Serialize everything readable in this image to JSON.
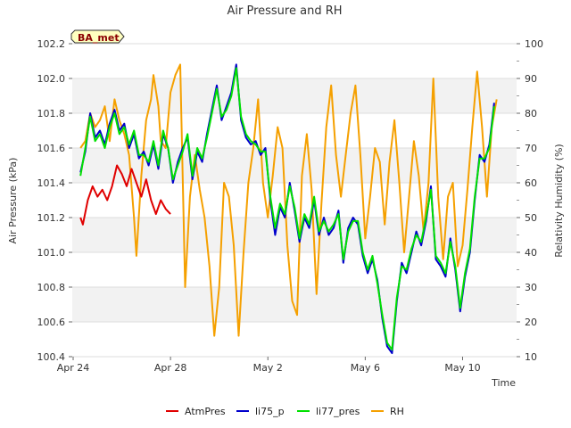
{
  "chart_data": {
    "type": "line",
    "title": "Air Pressure and RH",
    "station_label": "BA_met",
    "xlabel": "Time",
    "ylabel_left": "Air Pressure (kPa)",
    "ylabel_right": "Relativity Humidity (%)",
    "x_axis": {
      "start": "2024-04-24",
      "end": "2024-05-12",
      "ticks": [
        {
          "label": "Apr 24",
          "day": 0
        },
        {
          "label": "Apr 28",
          "day": 4
        },
        {
          "label": "May 2",
          "day": 8
        },
        {
          "label": "May 6",
          "day": 12
        },
        {
          "label": "May 10",
          "day": 16
        }
      ]
    },
    "y_left": {
      "min": 100.4,
      "max": 102.2,
      "ticks": [
        "100.4",
        "100.6",
        "100.8",
        "101.0",
        "101.2",
        "101.4",
        "101.6",
        "101.8",
        "102.0",
        "102.2"
      ]
    },
    "y_right": {
      "min": 10,
      "max": 100,
      "ticks": [
        "10",
        "20",
        "30",
        "40",
        "50",
        "60",
        "70",
        "80",
        "90",
        "100"
      ]
    },
    "legend_position": "bottom",
    "series": [
      {
        "name": "AtmPres",
        "axis": "left",
        "color": "#e00000",
        "points": [
          [
            0.3,
            101.2
          ],
          [
            0.4,
            101.16
          ],
          [
            0.6,
            101.3
          ],
          [
            0.8,
            101.38
          ],
          [
            1.0,
            101.32
          ],
          [
            1.2,
            101.36
          ],
          [
            1.4,
            101.3
          ],
          [
            1.6,
            101.38
          ],
          [
            1.8,
            101.5
          ],
          [
            2.0,
            101.45
          ],
          [
            2.2,
            101.38
          ],
          [
            2.4,
            101.48
          ],
          [
            2.6,
            101.4
          ],
          [
            2.8,
            101.32
          ],
          [
            3.0,
            101.42
          ],
          [
            3.2,
            101.3
          ],
          [
            3.4,
            101.22
          ],
          [
            3.6,
            101.3
          ],
          [
            3.8,
            101.25
          ],
          [
            4.0,
            101.22
          ]
        ]
      },
      {
        "name": "li75_p",
        "axis": "left",
        "color": "#0000cc",
        "points": [
          [
            0.3,
            101.46
          ],
          [
            0.5,
            101.58
          ],
          [
            0.7,
            101.8
          ],
          [
            0.9,
            101.66
          ],
          [
            1.1,
            101.7
          ],
          [
            1.3,
            101.62
          ],
          [
            1.5,
            101.74
          ],
          [
            1.7,
            101.82
          ],
          [
            1.9,
            101.7
          ],
          [
            2.1,
            101.74
          ],
          [
            2.3,
            101.6
          ],
          [
            2.5,
            101.68
          ],
          [
            2.7,
            101.54
          ],
          [
            2.9,
            101.58
          ],
          [
            3.1,
            101.5
          ],
          [
            3.3,
            101.62
          ],
          [
            3.5,
            101.48
          ],
          [
            3.7,
            101.68
          ],
          [
            3.9,
            101.6
          ],
          [
            4.1,
            101.4
          ],
          [
            4.3,
            101.52
          ],
          [
            4.5,
            101.6
          ],
          [
            4.7,
            101.66
          ],
          [
            4.9,
            101.42
          ],
          [
            5.1,
            101.58
          ],
          [
            5.3,
            101.52
          ],
          [
            5.5,
            101.68
          ],
          [
            5.7,
            101.82
          ],
          [
            5.9,
            101.96
          ],
          [
            6.1,
            101.76
          ],
          [
            6.3,
            101.84
          ],
          [
            6.5,
            101.92
          ],
          [
            6.7,
            102.08
          ],
          [
            6.9,
            101.76
          ],
          [
            7.1,
            101.66
          ],
          [
            7.3,
            101.62
          ],
          [
            7.5,
            101.64
          ],
          [
            7.7,
            101.56
          ],
          [
            7.9,
            101.6
          ],
          [
            8.1,
            101.3
          ],
          [
            8.3,
            101.1
          ],
          [
            8.5,
            101.26
          ],
          [
            8.7,
            101.2
          ],
          [
            8.9,
            101.4
          ],
          [
            9.1,
            101.24
          ],
          [
            9.3,
            101.06
          ],
          [
            9.5,
            101.2
          ],
          [
            9.7,
            101.14
          ],
          [
            9.9,
            101.3
          ],
          [
            10.1,
            101.1
          ],
          [
            10.3,
            101.2
          ],
          [
            10.5,
            101.1
          ],
          [
            10.7,
            101.14
          ],
          [
            10.9,
            101.24
          ],
          [
            11.1,
            100.94
          ],
          [
            11.3,
            101.14
          ],
          [
            11.5,
            101.2
          ],
          [
            11.7,
            101.16
          ],
          [
            11.9,
            100.98
          ],
          [
            12.1,
            100.88
          ],
          [
            12.3,
            100.96
          ],
          [
            12.5,
            100.84
          ],
          [
            12.7,
            100.62
          ],
          [
            12.9,
            100.46
          ],
          [
            13.1,
            100.42
          ],
          [
            13.3,
            100.72
          ],
          [
            13.5,
            100.94
          ],
          [
            13.7,
            100.88
          ],
          [
            13.9,
            101.0
          ],
          [
            14.1,
            101.12
          ],
          [
            14.3,
            101.04
          ],
          [
            14.5,
            101.18
          ],
          [
            14.7,
            101.38
          ],
          [
            14.9,
            100.96
          ],
          [
            15.1,
            100.92
          ],
          [
            15.3,
            100.86
          ],
          [
            15.5,
            101.08
          ],
          [
            15.7,
            100.9
          ],
          [
            15.9,
            100.66
          ],
          [
            16.1,
            100.86
          ],
          [
            16.3,
            101.0
          ],
          [
            16.5,
            101.3
          ],
          [
            16.7,
            101.56
          ],
          [
            16.9,
            101.52
          ],
          [
            17.1,
            101.62
          ],
          [
            17.3,
            101.86
          ]
        ]
      },
      {
        "name": "li77_pres",
        "axis": "left",
        "color": "#00e000",
        "points": [
          [
            0.3,
            101.44
          ],
          [
            0.5,
            101.6
          ],
          [
            0.7,
            101.78
          ],
          [
            0.9,
            101.64
          ],
          [
            1.1,
            101.68
          ],
          [
            1.3,
            101.6
          ],
          [
            1.5,
            101.72
          ],
          [
            1.7,
            101.8
          ],
          [
            1.9,
            101.68
          ],
          [
            2.1,
            101.72
          ],
          [
            2.3,
            101.62
          ],
          [
            2.5,
            101.7
          ],
          [
            2.7,
            101.56
          ],
          [
            2.9,
            101.56
          ],
          [
            3.1,
            101.52
          ],
          [
            3.3,
            101.64
          ],
          [
            3.5,
            101.5
          ],
          [
            3.7,
            101.7
          ],
          [
            3.9,
            101.6
          ],
          [
            4.1,
            101.42
          ],
          [
            4.3,
            101.5
          ],
          [
            4.5,
            101.58
          ],
          [
            4.7,
            101.68
          ],
          [
            4.9,
            101.44
          ],
          [
            5.1,
            101.6
          ],
          [
            5.3,
            101.54
          ],
          [
            5.5,
            101.66
          ],
          [
            5.7,
            101.8
          ],
          [
            5.9,
            101.94
          ],
          [
            6.1,
            101.78
          ],
          [
            6.3,
            101.82
          ],
          [
            6.5,
            101.9
          ],
          [
            6.7,
            102.06
          ],
          [
            6.9,
            101.78
          ],
          [
            7.1,
            101.68
          ],
          [
            7.3,
            101.64
          ],
          [
            7.5,
            101.62
          ],
          [
            7.7,
            101.58
          ],
          [
            7.9,
            101.58
          ],
          [
            8.1,
            101.32
          ],
          [
            8.3,
            101.14
          ],
          [
            8.5,
            101.28
          ],
          [
            8.7,
            101.22
          ],
          [
            8.9,
            101.38
          ],
          [
            9.1,
            101.26
          ],
          [
            9.3,
            101.08
          ],
          [
            9.5,
            101.22
          ],
          [
            9.7,
            101.16
          ],
          [
            9.9,
            101.32
          ],
          [
            10.1,
            101.12
          ],
          [
            10.3,
            101.18
          ],
          [
            10.5,
            101.12
          ],
          [
            10.7,
            101.16
          ],
          [
            10.9,
            101.22
          ],
          [
            11.1,
            100.96
          ],
          [
            11.3,
            101.12
          ],
          [
            11.5,
            101.18
          ],
          [
            11.7,
            101.18
          ],
          [
            11.9,
            101.0
          ],
          [
            12.1,
            100.9
          ],
          [
            12.3,
            100.98
          ],
          [
            12.5,
            100.82
          ],
          [
            12.7,
            100.64
          ],
          [
            12.9,
            100.48
          ],
          [
            13.1,
            100.44
          ],
          [
            13.3,
            100.74
          ],
          [
            13.5,
            100.92
          ],
          [
            13.7,
            100.9
          ],
          [
            13.9,
            101.02
          ],
          [
            14.1,
            101.1
          ],
          [
            14.3,
            101.06
          ],
          [
            14.5,
            101.2
          ],
          [
            14.7,
            101.36
          ],
          [
            14.9,
            100.98
          ],
          [
            15.1,
            100.94
          ],
          [
            15.3,
            100.88
          ],
          [
            15.5,
            101.06
          ],
          [
            15.7,
            100.92
          ],
          [
            15.9,
            100.68
          ],
          [
            16.1,
            100.88
          ],
          [
            16.3,
            101.02
          ],
          [
            16.5,
            101.32
          ],
          [
            16.7,
            101.54
          ],
          [
            16.9,
            101.54
          ],
          [
            17.1,
            101.6
          ],
          [
            17.3,
            101.84
          ]
        ]
      },
      {
        "name": "RH",
        "axis": "right",
        "color": "#f5a000",
        "points": [
          [
            0.3,
            70
          ],
          [
            0.5,
            72
          ],
          [
            0.7,
            80
          ],
          [
            0.9,
            76
          ],
          [
            1.1,
            78
          ],
          [
            1.3,
            82
          ],
          [
            1.5,
            72
          ],
          [
            1.7,
            84
          ],
          [
            1.9,
            78
          ],
          [
            2.1,
            74
          ],
          [
            2.3,
            68
          ],
          [
            2.5,
            50
          ],
          [
            2.6,
            39
          ],
          [
            2.8,
            62
          ],
          [
            3.0,
            78
          ],
          [
            3.2,
            84
          ],
          [
            3.3,
            91
          ],
          [
            3.5,
            82
          ],
          [
            3.6,
            72
          ],
          [
            3.8,
            70
          ],
          [
            4.0,
            86
          ],
          [
            4.2,
            91
          ],
          [
            4.4,
            94
          ],
          [
            4.6,
            30
          ],
          [
            4.8,
            56
          ],
          [
            5.0,
            68
          ],
          [
            5.2,
            58
          ],
          [
            5.4,
            50
          ],
          [
            5.6,
            36
          ],
          [
            5.8,
            16
          ],
          [
            6.0,
            30
          ],
          [
            6.2,
            60
          ],
          [
            6.4,
            56
          ],
          [
            6.6,
            42
          ],
          [
            6.8,
            16
          ],
          [
            7.0,
            40
          ],
          [
            7.2,
            60
          ],
          [
            7.4,
            70
          ],
          [
            7.6,
            84
          ],
          [
            7.8,
            60
          ],
          [
            8.0,
            50
          ],
          [
            8.2,
            62
          ],
          [
            8.4,
            76
          ],
          [
            8.6,
            70
          ],
          [
            8.8,
            42
          ],
          [
            9.0,
            26
          ],
          [
            9.2,
            22
          ],
          [
            9.4,
            62
          ],
          [
            9.6,
            74
          ],
          [
            9.8,
            58
          ],
          [
            10.0,
            28
          ],
          [
            10.2,
            54
          ],
          [
            10.4,
            76
          ],
          [
            10.6,
            88
          ],
          [
            10.8,
            68
          ],
          [
            11.0,
            56
          ],
          [
            11.2,
            68
          ],
          [
            11.4,
            80
          ],
          [
            11.6,
            88
          ],
          [
            11.8,
            68
          ],
          [
            12.0,
            44
          ],
          [
            12.2,
            56
          ],
          [
            12.4,
            70
          ],
          [
            12.6,
            66
          ],
          [
            12.8,
            48
          ],
          [
            13.0,
            66
          ],
          [
            13.2,
            78
          ],
          [
            13.4,
            60
          ],
          [
            13.6,
            40
          ],
          [
            13.8,
            56
          ],
          [
            14.0,
            72
          ],
          [
            14.2,
            62
          ],
          [
            14.4,
            46
          ],
          [
            14.6,
            60
          ],
          [
            14.8,
            90
          ],
          [
            15.0,
            56
          ],
          [
            15.2,
            38
          ],
          [
            15.4,
            56
          ],
          [
            15.6,
            60
          ],
          [
            15.8,
            36
          ],
          [
            16.0,
            42
          ],
          [
            16.2,
            58
          ],
          [
            16.4,
            76
          ],
          [
            16.6,
            92
          ],
          [
            16.8,
            76
          ],
          [
            17.0,
            56
          ],
          [
            17.2,
            76
          ],
          [
            17.4,
            84
          ]
        ]
      }
    ]
  }
}
